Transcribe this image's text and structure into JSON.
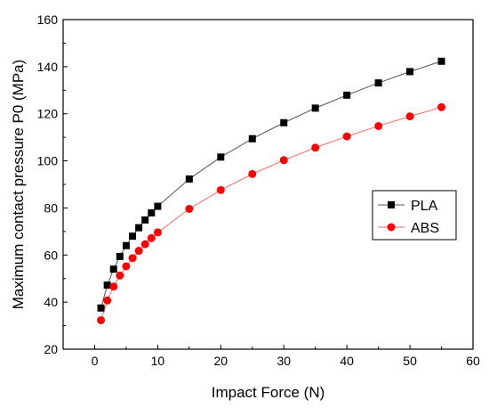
{
  "chart_data": {
    "type": "line",
    "xlabel": "Impact Force (N)",
    "ylabel": "Maximum contact pressure P0 (MPa)",
    "xlim": [
      -5,
      60
    ],
    "ylim": [
      20,
      160
    ],
    "xticks": [
      0,
      10,
      20,
      30,
      40,
      50,
      60
    ],
    "yticks": [
      20,
      40,
      60,
      80,
      100,
      120,
      140,
      160
    ],
    "grid": false,
    "legend_position": "right",
    "series": [
      {
        "name": "PLA",
        "marker": "square",
        "color": "#000000",
        "line_color": "#555555",
        "x": [
          1,
          2,
          3,
          4,
          5,
          6,
          7,
          8,
          9,
          10,
          15,
          20,
          25,
          30,
          35,
          40,
          45,
          50,
          55
        ],
        "y": [
          37.5,
          47.2,
          54.0,
          59.4,
          64.0,
          68.0,
          71.6,
          74.9,
          77.9,
          80.7,
          92.3,
          101.6,
          109.4,
          116.2,
          122.4,
          127.9,
          133.1,
          137.9,
          142.3
        ]
      },
      {
        "name": "ABS",
        "marker": "circle",
        "color": "#ff0000",
        "line_color": "#ff6666",
        "x": [
          1,
          2,
          3,
          4,
          5,
          6,
          7,
          8,
          9,
          10,
          15,
          20,
          25,
          30,
          35,
          40,
          45,
          50,
          55
        ],
        "y": [
          32.3,
          40.7,
          46.6,
          51.3,
          55.2,
          58.7,
          61.8,
          64.6,
          67.2,
          69.6,
          79.6,
          87.6,
          94.4,
          100.3,
          105.6,
          110.4,
          114.8,
          118.9,
          122.8
        ]
      }
    ]
  }
}
